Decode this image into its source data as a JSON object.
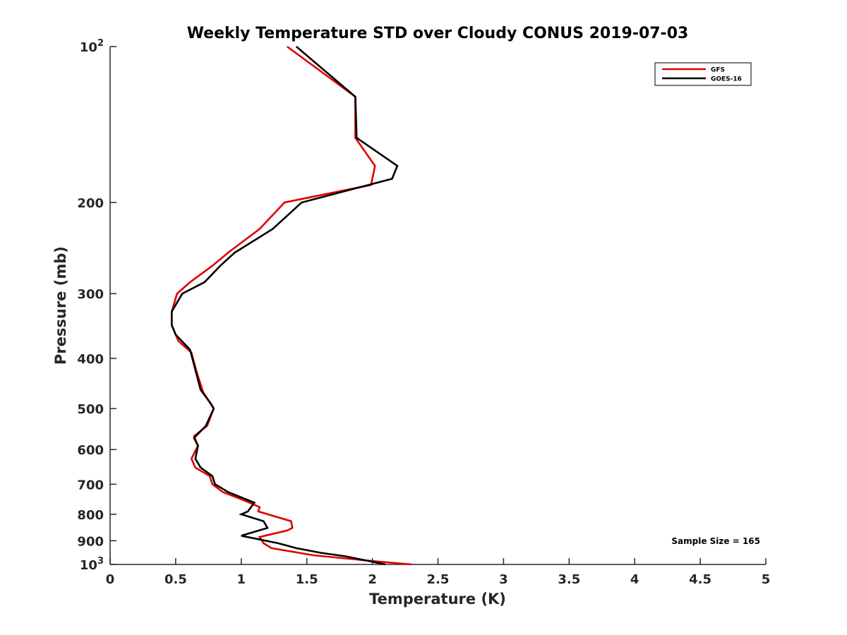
{
  "chart_data": {
    "type": "line",
    "title": "Weekly Temperature STD over Cloudy CONUS 2019-07-03",
    "xlabel": "Temperature (K)",
    "ylabel": "Pressure (mb)",
    "xlim": [
      0,
      5
    ],
    "ylim": [
      100,
      1000
    ],
    "y_scale": "log",
    "y_reversed": true,
    "x_ticks": [
      "0",
      "0.5",
      "1",
      "1.5",
      "2",
      "2.5",
      "3",
      "3.5",
      "4",
      "4.5",
      "5"
    ],
    "y_ticks": [
      {
        "value": 100,
        "base": "10",
        "exp": "2"
      },
      {
        "value": 200,
        "label": "200"
      },
      {
        "value": 300,
        "label": "300"
      },
      {
        "value": 400,
        "label": "400"
      },
      {
        "value": 500,
        "label": "500"
      },
      {
        "value": 600,
        "label": "600"
      },
      {
        "value": 700,
        "label": "700"
      },
      {
        "value": 800,
        "label": "800"
      },
      {
        "value": 900,
        "label": "900"
      },
      {
        "value": 1000,
        "base": "10",
        "exp": "3"
      }
    ],
    "grid": false,
    "legend_position": "top-right",
    "annotation": "Sample Size = 165",
    "series": [
      {
        "name": "GFS",
        "color": "#dd0000",
        "points": [
          [
            1.35,
            100
          ],
          [
            1.87,
            125
          ],
          [
            1.87,
            150
          ],
          [
            2.02,
            170
          ],
          [
            1.99,
            185
          ],
          [
            1.33,
            200
          ],
          [
            1.14,
            225
          ],
          [
            0.9,
            250
          ],
          [
            0.78,
            265
          ],
          [
            0.61,
            285
          ],
          [
            0.51,
            300
          ],
          [
            0.47,
            325
          ],
          [
            0.47,
            345
          ],
          [
            0.52,
            370
          ],
          [
            0.62,
            390
          ],
          [
            0.66,
            425
          ],
          [
            0.71,
            465
          ],
          [
            0.79,
            500
          ],
          [
            0.74,
            540
          ],
          [
            0.64,
            565
          ],
          [
            0.67,
            590
          ],
          [
            0.62,
            625
          ],
          [
            0.65,
            650
          ],
          [
            0.76,
            675
          ],
          [
            0.78,
            700
          ],
          [
            0.86,
            725
          ],
          [
            1.01,
            750
          ],
          [
            1.14,
            775
          ],
          [
            1.13,
            790
          ],
          [
            1.38,
            825
          ],
          [
            1.39,
            850
          ],
          [
            1.35,
            860
          ],
          [
            1.14,
            885
          ],
          [
            1.17,
            910
          ],
          [
            1.23,
            930
          ],
          [
            1.55,
            960
          ],
          [
            2.0,
            985
          ],
          [
            2.3,
            1000
          ]
        ]
      },
      {
        "name": "GOES-16",
        "color": "#000000",
        "points": [
          [
            1.42,
            100
          ],
          [
            1.87,
            125
          ],
          [
            1.88,
            150
          ],
          [
            2.19,
            170
          ],
          [
            2.15,
            180
          ],
          [
            1.46,
            200
          ],
          [
            1.24,
            225
          ],
          [
            0.95,
            250
          ],
          [
            0.84,
            265
          ],
          [
            0.72,
            285
          ],
          [
            0.55,
            300
          ],
          [
            0.47,
            325
          ],
          [
            0.47,
            345
          ],
          [
            0.5,
            360
          ],
          [
            0.61,
            385
          ],
          [
            0.69,
            460
          ],
          [
            0.77,
            490
          ],
          [
            0.79,
            500
          ],
          [
            0.73,
            540
          ],
          [
            0.64,
            570
          ],
          [
            0.67,
            590
          ],
          [
            0.65,
            625
          ],
          [
            0.69,
            650
          ],
          [
            0.78,
            675
          ],
          [
            0.8,
            700
          ],
          [
            0.9,
            725
          ],
          [
            1.1,
            760
          ],
          [
            1.05,
            790
          ],
          [
            1.0,
            800
          ],
          [
            1.17,
            825
          ],
          [
            1.2,
            850
          ],
          [
            1.0,
            880
          ],
          [
            1.28,
            910
          ],
          [
            1.42,
            930
          ],
          [
            1.61,
            950
          ],
          [
            1.8,
            965
          ],
          [
            2.1,
            1000
          ]
        ]
      }
    ]
  }
}
